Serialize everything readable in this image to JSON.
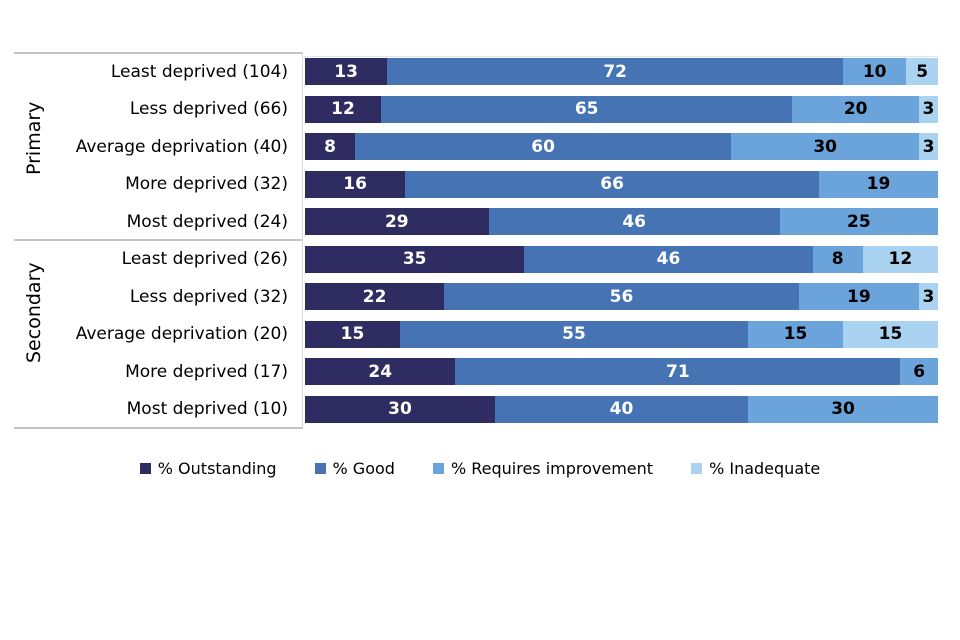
{
  "chart_data": {
    "type": "bar",
    "orientation": "horizontal",
    "stacked": true,
    "normalized_to_100": true,
    "title": "",
    "xlabel": "",
    "ylabel": "",
    "legend_position": "bottom",
    "grid": false,
    "series_colors": {
      "outstanding": "#2E2C60",
      "good": "#4573B4",
      "requires_improvement": "#6BA4DA",
      "inadequate": "#A9D3F0"
    },
    "legend": [
      {
        "label": "% Outstanding",
        "color": "#2E2C60",
        "text_color": "#ffffff"
      },
      {
        "label": "% Good",
        "color": "#4573B4",
        "text_color": "#ffffff"
      },
      {
        "label": "% Requires improvement",
        "color": "#6BA4DA",
        "text_color": "#000000"
      },
      {
        "label": "% Inadequate",
        "color": "#A9D3F0",
        "text_color": "#000000"
      }
    ],
    "groups": [
      {
        "label": "Primary",
        "rows": [
          {
            "label": "Least deprived (104)",
            "values": [
              13,
              72,
              10,
              5
            ]
          },
          {
            "label": "Less deprived (66)",
            "values": [
              12,
              65,
              20,
              3
            ]
          },
          {
            "label": "Average deprivation (40)",
            "values": [
              8,
              60,
              30,
              3
            ]
          },
          {
            "label": "More deprived (32)",
            "values": [
              16,
              66,
              19,
              0
            ]
          },
          {
            "label": "Most deprived (24)",
            "values": [
              29,
              46,
              25,
              0
            ]
          }
        ]
      },
      {
        "label": "Secondary",
        "rows": [
          {
            "label": "Least deprived (26)",
            "values": [
              35,
              46,
              8,
              12
            ]
          },
          {
            "label": "Less deprived (32)",
            "values": [
              22,
              56,
              19,
              3
            ]
          },
          {
            "label": "Average deprivation (20)",
            "values": [
              15,
              55,
              15,
              15
            ]
          },
          {
            "label": "More deprived (17)",
            "values": [
              24,
              71,
              6,
              0
            ]
          },
          {
            "label": "Most deprived (10)",
            "values": [
              30,
              40,
              30,
              0
            ]
          }
        ]
      }
    ]
  }
}
